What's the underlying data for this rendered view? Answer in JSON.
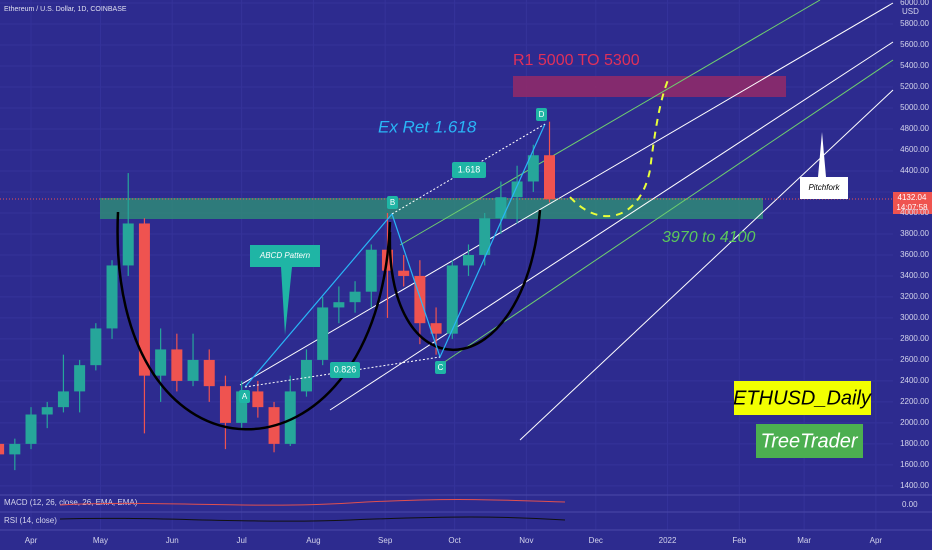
{
  "chart_data": {
    "type": "candlestick",
    "title": "Ethereum / U.S. Dollar, 1D, COINBASE",
    "currency": "USD",
    "x": [
      -14,
      -7,
      0,
      7,
      14,
      21,
      28,
      35,
      42,
      49,
      56,
      63,
      70,
      77,
      84,
      91,
      98,
      105,
      112,
      119,
      126,
      133,
      140,
      147,
      154,
      161,
      168,
      175,
      182,
      189,
      196,
      203,
      210,
      217,
      224
    ],
    "open": [
      1800,
      1700,
      1800,
      2080,
      2150,
      2300,
      2550,
      2900,
      3500,
      3900,
      2450,
      2700,
      2400,
      2600,
      2350,
      2000,
      2300,
      2150,
      1800,
      2300,
      2600,
      3100,
      3150,
      3250,
      3650,
      3450,
      3400,
      2950,
      2850,
      3500,
      3600,
      3950,
      4150,
      4300,
      4550
    ],
    "high": [
      1950,
      1850,
      2150,
      2200,
      2650,
      2600,
      2950,
      3550,
      4380,
      3950,
      2900,
      2850,
      2850,
      2700,
      2450,
      2400,
      2400,
      2200,
      2450,
      2700,
      3200,
      3300,
      3350,
      3700,
      4000,
      3600,
      3550,
      3100,
      3550,
      3700,
      4000,
      4300,
      4450,
      4650,
      4870
    ],
    "low": [
      1650,
      1550,
      1750,
      1950,
      2100,
      2100,
      2500,
      2800,
      3400,
      1900,
      2200,
      2300,
      2350,
      2200,
      1750,
      1950,
      2050,
      1720,
      1780,
      2250,
      2550,
      2950,
      3050,
      3100,
      3000,
      3300,
      2750,
      2650,
      2800,
      3400,
      3500,
      3800,
      3900,
      4200,
      4100
    ],
    "close": [
      1700,
      1800,
      2080,
      2150,
      2300,
      2550,
      2900,
      3500,
      3900,
      2450,
      2700,
      2400,
      2600,
      2350,
      2000,
      2300,
      2150,
      1800,
      2300,
      2600,
      3100,
      3150,
      3250,
      3650,
      3450,
      3400,
      2950,
      2850,
      3500,
      3600,
      3950,
      4150,
      4300,
      4550,
      4130
    ],
    "up_color": "#26a69a",
    "down_color": "#ef5350",
    "xlim": [
      -13.4,
      372.4
    ],
    "xticks": [
      {
        "value": 0,
        "label": "Apr"
      },
      {
        "value": 30,
        "label": "May"
      },
      {
        "value": 61,
        "label": "Jun"
      },
      {
        "value": 91,
        "label": "Jul"
      },
      {
        "value": 122,
        "label": "Aug"
      },
      {
        "value": 153,
        "label": "Sep"
      },
      {
        "value": 183,
        "label": "Oct"
      },
      {
        "value": 214,
        "label": "Nov"
      },
      {
        "value": 244,
        "label": "Dec"
      },
      {
        "value": 275,
        "label": "2022"
      },
      {
        "value": 306,
        "label": "Feb"
      },
      {
        "value": 334,
        "label": "Mar"
      },
      {
        "value": 365,
        "label": "Apr"
      }
    ],
    "ylim": [
      1313,
      6029
    ],
    "yticks": [
      {
        "value": 1400,
        "label": "1400.00"
      },
      {
        "value": 1600,
        "label": "1600.00"
      },
      {
        "value": 1800,
        "label": "1800.00"
      },
      {
        "value": 2000,
        "label": "2000.00"
      },
      {
        "value": 2200,
        "label": "2200.00"
      },
      {
        "value": 2400,
        "label": "2400.00"
      },
      {
        "value": 2600,
        "label": "2600.00"
      },
      {
        "value": 2800,
        "label": "2800.00"
      },
      {
        "value": 3000,
        "label": "3000.00"
      },
      {
        "value": 3200,
        "label": "3200.00"
      },
      {
        "value": 3400,
        "label": "3400.00"
      },
      {
        "value": 3600,
        "label": "3600.00"
      },
      {
        "value": 3800,
        "label": "3800.00"
      },
      {
        "value": 4000,
        "label": "4000.00"
      },
      {
        "value": 4200,
        "label": "4200.00"
      },
      {
        "value": 4400,
        "label": "4400.00"
      },
      {
        "value": 4600,
        "label": "4600.00"
      },
      {
        "value": 4800,
        "label": "4800.00"
      },
      {
        "value": 5000,
        "label": "5000.00"
      },
      {
        "value": 5200,
        "label": "5200.00"
      },
      {
        "value": 5400,
        "label": "5400.00"
      },
      {
        "value": 5600,
        "label": "5600.00"
      },
      {
        "value": 5800,
        "label": "5800.00"
      },
      {
        "value": 6000,
        "label": "6000.00"
      }
    ],
    "current_price": {
      "value": 4132.04,
      "label": "4132.04"
    },
    "countdown": "14:07:58",
    "annotations": {
      "target": "R1 5000 TO 5300",
      "extension": "Ex Ret 1.618",
      "ratio_bd": "1.618",
      "ratio_ac": "0.826",
      "pattern": "ABCD Pattern",
      "pitchfork": "Pitchfork",
      "support": "3970 to 4100",
      "point_a": "A",
      "point_b": "B",
      "point_c": "C",
      "point_d": "D",
      "symbol_tag": "ETHUSD_Daily",
      "author_tag": "TreeTrader"
    },
    "indicators": {
      "macd": "MACD (12, 26, close, 26, EMA, EMA)",
      "rsi": "RSI (14, close)",
      "zero": "0.00"
    }
  }
}
